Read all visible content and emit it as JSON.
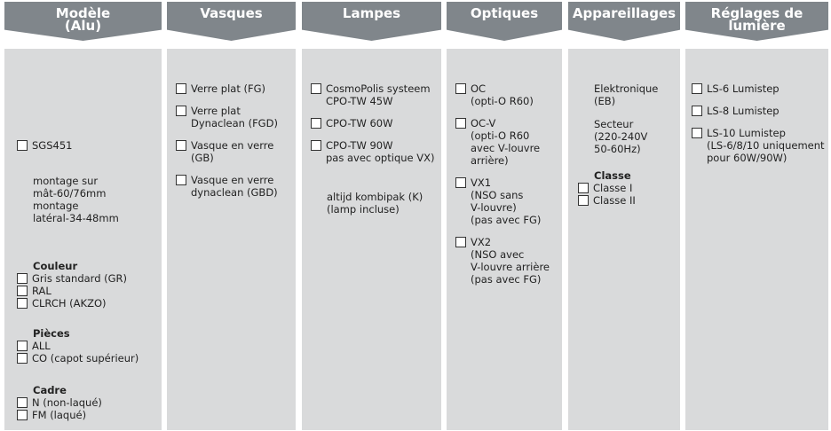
{
  "columns": [
    {
      "header": [
        "Modèle",
        "(Alu)"
      ],
      "blocks": [
        {
          "options": [
            [
              "SGS451"
            ]
          ]
        },
        {
          "note": [
            "montage sur",
            "mât-60/76mm",
            "montage",
            "latéral-34-48mm"
          ]
        },
        {
          "heading": "Couleur",
          "options": [
            [
              "Gris standard (GR)"
            ],
            [
              "RAL"
            ],
            [
              "CLRCH (AKZO)"
            ]
          ]
        },
        {
          "heading": "Pièces",
          "options": [
            [
              "ALL"
            ],
            [
              "CO (capot supérieur)"
            ]
          ]
        },
        {
          "heading": "Cadre",
          "options": [
            [
              "N (non-laqué)"
            ],
            [
              "FM (laqué)"
            ]
          ]
        }
      ]
    },
    {
      "header": [
        "Vasques"
      ],
      "blocks": [
        {
          "options": [
            [
              "Verre plat (FG)"
            ],
            [
              "Verre plat",
              "Dynaclean (FGD)"
            ],
            [
              "Vasque en verre",
              "(GB)"
            ],
            [
              "Vasque en verre",
              "dynaclean (GBD)"
            ]
          ]
        }
      ]
    },
    {
      "header": [
        "Lampes"
      ],
      "blocks": [
        {
          "options": [
            [
              "CosmoPolis systeem",
              "CPO-TW 45W"
            ],
            [
              "CPO-TW 60W"
            ],
            [
              "CPO-TW 90W",
              "pas avec optique VX)"
            ]
          ]
        },
        {
          "note": [
            "altijd kombipak (K)",
            "(lamp incluse)"
          ]
        }
      ]
    },
    {
      "header": [
        "Optiques"
      ],
      "blocks": [
        {
          "options": [
            [
              "OC",
              "(opti-O R60)"
            ],
            [
              "OC-V",
              "(opti-O R60",
              "avec V-louvre",
              "arrière)"
            ],
            [
              "VX1",
              "(NSO sans",
              "V-louvre)",
              "(pas avec FG)"
            ],
            [
              "VX2",
              "(NSO avec",
              "V-louvre arrière",
              "(pas avec FG)"
            ]
          ]
        }
      ]
    },
    {
      "header": [
        "Appareillages"
      ],
      "blocks": [
        {
          "note": [
            "Elektronique",
            "(EB)"
          ]
        },
        {
          "note": [
            "Secteur",
            "(220-240V",
            "50-60Hz)"
          ]
        },
        {
          "heading": "Classe",
          "options": [
            [
              "Classe I"
            ],
            [
              "Classe II"
            ]
          ]
        }
      ]
    },
    {
      "header": [
        "Réglages de",
        "lumière"
      ],
      "blocks": [
        {
          "options": [
            [
              "LS-6 Lumistep"
            ],
            [
              "LS-8 Lumistep"
            ],
            [
              "LS-10 Lumistep",
              "(LS-6/8/10 uniquement",
              "pour 60W/90W)"
            ]
          ]
        }
      ]
    }
  ]
}
